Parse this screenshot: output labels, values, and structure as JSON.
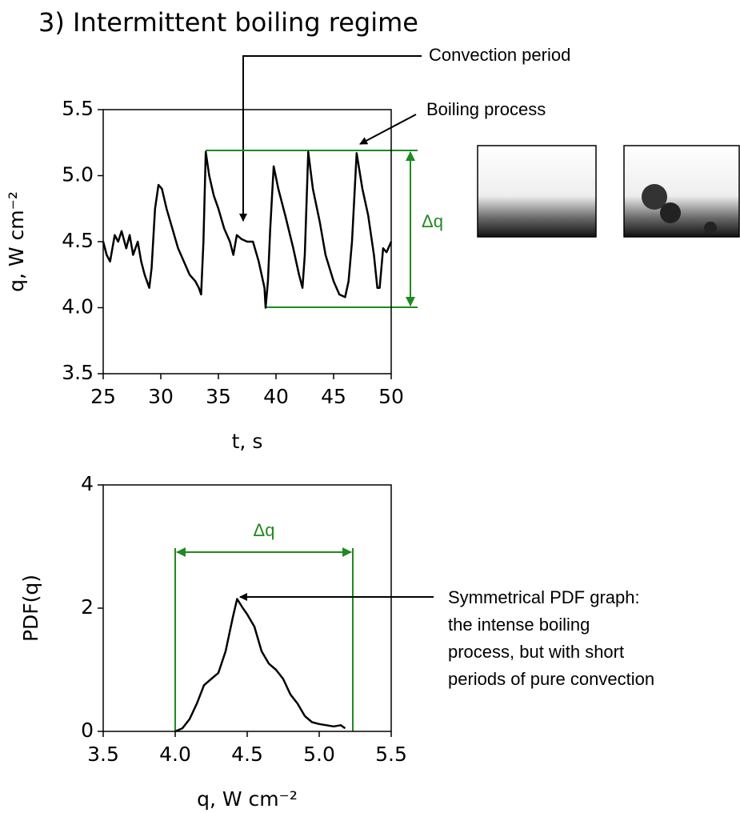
{
  "chart_data": [
    {
      "type": "line",
      "title": "3) Intermittent boiling regime",
      "x_label": "t, s",
      "y_label": "q, W cm⁻²",
      "xlim": [
        25,
        50
      ],
      "ylim": [
        3.5,
        5.5
      ],
      "xticks": [
        25,
        30,
        35,
        40,
        45,
        50
      ],
      "yticks": [
        3.5,
        {
          "value": 4,
          "label": "4.0"
        },
        4.5,
        {
          "value": 5,
          "label": "5.0"
        },
        5.5
      ],
      "color": "#000000",
      "x": [
        25,
        25.3,
        25.6,
        26,
        26.3,
        26.6,
        27,
        27.3,
        27.6,
        28,
        28.3,
        28.6,
        29,
        29.2,
        29.5,
        29.8,
        30.1,
        30.5,
        31,
        31.5,
        32,
        32.5,
        33,
        33.3,
        33.5,
        33.7,
        33.9,
        34.2,
        34.6,
        35,
        35.5,
        36,
        36.3,
        36.6,
        37,
        37.5,
        38,
        38.5,
        39,
        39.1,
        39.3,
        39.5,
        39.8,
        40.2,
        40.8,
        41.5,
        42,
        42.3,
        42.5,
        42.8,
        43.2,
        43.8,
        44.3,
        45,
        45.5,
        46,
        46.3,
        46.6,
        47,
        47.5,
        48,
        48.5,
        48.8,
        49,
        49.3,
        49.6,
        50
      ],
      "values": [
        4.5,
        4.4,
        4.35,
        4.55,
        4.5,
        4.58,
        4.45,
        4.55,
        4.4,
        4.5,
        4.35,
        4.25,
        4.15,
        4.3,
        4.75,
        4.93,
        4.9,
        4.75,
        4.6,
        4.45,
        4.35,
        4.25,
        4.2,
        4.15,
        4.1,
        4.5,
        5.18,
        5.0,
        4.85,
        4.75,
        4.6,
        4.5,
        4.4,
        4.55,
        4.52,
        4.5,
        4.5,
        4.35,
        4.15,
        4.0,
        4.2,
        4.6,
        5.07,
        4.9,
        4.7,
        4.45,
        4.25,
        4.15,
        4.4,
        5.18,
        4.9,
        4.65,
        4.4,
        4.2,
        4.1,
        4.08,
        4.2,
        4.5,
        5.17,
        4.9,
        4.7,
        4.4,
        4.15,
        4.15,
        4.45,
        4.42,
        4.5
      ],
      "annotations": [
        "Convection period",
        "Boiling process",
        "Δq"
      ]
    },
    {
      "type": "line",
      "x_label": "q, W cm⁻²",
      "y_label": "PDF(q)",
      "xlim": [
        3.5,
        5.5
      ],
      "ylim": [
        0,
        4
      ],
      "xticks": [
        3.5,
        {
          "value": 4,
          "label": "4.0"
        },
        4.5,
        {
          "value": 5,
          "label": "5.0"
        },
        5.5
      ],
      "yticks": [
        0,
        2,
        4
      ],
      "color": "#000000",
      "x": [
        4.0,
        4.05,
        4.1,
        4.15,
        4.2,
        4.25,
        4.3,
        4.35,
        4.4,
        4.43,
        4.47,
        4.5,
        4.55,
        4.6,
        4.65,
        4.7,
        4.75,
        4.8,
        4.85,
        4.9,
        4.95,
        5.0,
        5.05,
        5.1,
        5.15,
        5.18
      ],
      "values": [
        0.0,
        0.05,
        0.2,
        0.45,
        0.75,
        0.85,
        0.95,
        1.3,
        1.85,
        2.15,
        2.0,
        1.9,
        1.7,
        1.3,
        1.1,
        1.0,
        0.85,
        0.6,
        0.45,
        0.25,
        0.15,
        0.12,
        0.1,
        0.08,
        0.1,
        0.05
      ],
      "annotations": [
        "Δq",
        "Symmetrical PDF graph:",
        "the intense boiling",
        "process, but with short",
        "periods of pure convection"
      ]
    }
  ]
}
